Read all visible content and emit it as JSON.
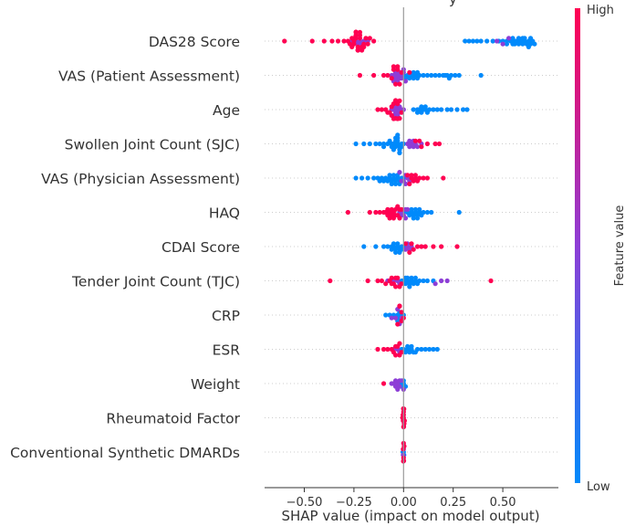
{
  "chart_data": {
    "type": "scatter",
    "subtype": "shap-beeswarm",
    "title_fragment": "y",
    "xlabel": "SHAP value (impact on model output)",
    "xlim": [
      -0.7,
      0.78
    ],
    "xticks": [
      {
        "value": -0.5,
        "label": "−0.50"
      },
      {
        "value": -0.25,
        "label": "−0.25"
      },
      {
        "value": 0,
        "label": "0.00"
      },
      {
        "value": 0.25,
        "label": "0.25"
      },
      {
        "value": 0.5,
        "label": "0.50"
      }
    ],
    "colorbar": {
      "title": "Feature value",
      "high_label": "High",
      "low_label": "Low",
      "low_color": "#008afb",
      "mid_color": "#8d3ed6",
      "high_color": "#ff0052"
    },
    "features": [
      {
        "name": "DAS28 Score",
        "blue": [
          0.31,
          0.33,
          0.35,
          0.37,
          0.39,
          0.42,
          0.45,
          0.48,
          0.5,
          0.52,
          0.54,
          0.55,
          0.56,
          0.57,
          0.58,
          0.59,
          0.6,
          0.61,
          0.62,
          0.63,
          0.64,
          0.65,
          0.66,
          0.52,
          0.55,
          0.58,
          0.61,
          0.64,
          0.56,
          0.6,
          0.63
        ],
        "purple": [
          -0.24,
          -0.22,
          -0.2,
          -0.18,
          -0.26,
          0.47,
          0.5,
          0.53,
          -0.23,
          -0.21
        ],
        "red": [
          -0.6,
          -0.46,
          -0.4,
          -0.36,
          -0.33,
          -0.3,
          -0.28,
          -0.27,
          -0.26,
          -0.25,
          -0.24,
          -0.23,
          -0.22,
          -0.21,
          -0.2,
          -0.19,
          -0.18,
          -0.17,
          -0.15,
          -0.26,
          -0.25,
          -0.24,
          -0.23,
          -0.22,
          -0.21,
          -0.2,
          -0.25,
          -0.24,
          -0.23,
          -0.22,
          -0.21,
          -0.24,
          -0.23
        ]
      },
      {
        "name": "VAS (Patient Assessment)",
        "blue": [
          0.0,
          0.02,
          0.04,
          0.05,
          0.06,
          0.07,
          0.08,
          0.1,
          0.12,
          0.14,
          0.16,
          0.18,
          0.2,
          0.22,
          0.24,
          0.26,
          0.28,
          0.39,
          0.01,
          0.03,
          0.05,
          0.07,
          0.21,
          0.23
        ],
        "purple": [
          -0.06,
          -0.05,
          -0.04,
          -0.03,
          -0.02,
          -0.01,
          0.0,
          0.01,
          -0.04,
          -0.02,
          0.0,
          -0.05,
          -0.03,
          -0.01
        ],
        "red": [
          -0.22,
          -0.15,
          -0.1,
          -0.08,
          -0.06,
          -0.05,
          -0.04,
          -0.03,
          -0.02,
          -0.01,
          -0.05,
          -0.03,
          0.03
        ]
      },
      {
        "name": "Age",
        "blue": [
          0.05,
          0.07,
          0.08,
          0.09,
          0.1,
          0.11,
          0.12,
          0.13,
          0.15,
          0.17,
          0.19,
          0.22,
          0.24,
          0.27,
          0.3,
          0.32,
          0.07,
          0.09,
          0.11
        ],
        "purple": [
          -0.06,
          -0.05,
          -0.04,
          -0.03,
          -0.02,
          -0.01,
          0.0,
          -0.04,
          -0.02,
          -0.03,
          -0.05
        ],
        "red": [
          -0.13,
          -0.11,
          -0.09,
          -0.08,
          -0.07,
          -0.06,
          -0.05,
          -0.04,
          -0.03,
          -0.02,
          -0.01,
          -0.06,
          -0.04,
          -0.02,
          -0.05,
          -0.03,
          -0.04
        ]
      },
      {
        "name": "Swollen Joint Count (SJC)",
        "blue": [
          -0.24,
          -0.2,
          -0.17,
          -0.14,
          -0.12,
          -0.1,
          -0.08,
          -0.06,
          -0.05,
          -0.04,
          -0.03,
          -0.02,
          -0.01,
          0.0,
          -0.06,
          -0.04,
          -0.03,
          -0.02,
          -0.01,
          -0.05,
          -0.03,
          -0.02,
          -0.04,
          -0.03,
          -0.02,
          -0.1,
          -0.07
        ],
        "purple": [
          0.02,
          0.03,
          0.04,
          0.05,
          0.06,
          0.07,
          0.09,
          0.03,
          0.05
        ],
        "red": [
          0.06,
          0.09,
          0.12,
          0.16,
          0.18,
          0.08
        ]
      },
      {
        "name": "VAS (Physician Assessment)",
        "blue": [
          -0.24,
          -0.21,
          -0.18,
          -0.15,
          -0.13,
          -0.11,
          -0.09,
          -0.08,
          -0.07,
          -0.06,
          -0.05,
          -0.04,
          -0.03,
          -0.02,
          -0.01,
          0.0,
          -0.07,
          -0.05,
          -0.03,
          -0.02,
          -0.06,
          -0.04,
          -0.1,
          -0.12
        ],
        "purple": [
          -0.02,
          0.0,
          0.01,
          0.02,
          0.03,
          -0.01,
          0.01
        ],
        "red": [
          0.02,
          0.03,
          0.04,
          0.05,
          0.06,
          0.07,
          0.08,
          0.1,
          0.12,
          0.2,
          0.04,
          0.06
        ]
      },
      {
        "name": "HAQ",
        "blue": [
          0.0,
          0.02,
          0.03,
          0.04,
          0.05,
          0.06,
          0.07,
          0.08,
          0.09,
          0.1,
          0.12,
          0.14,
          0.28,
          0.04,
          0.06,
          0.08,
          0.05,
          0.07
        ],
        "purple": [
          -0.02,
          -0.01,
          0.0,
          0.01,
          0.02,
          -0.01,
          0.01
        ],
        "red": [
          -0.28,
          -0.17,
          -0.14,
          -0.12,
          -0.1,
          -0.09,
          -0.08,
          -0.07,
          -0.06,
          -0.05,
          -0.04,
          -0.03,
          -0.02,
          -0.01,
          -0.08,
          -0.06,
          -0.04,
          -0.02,
          -0.05,
          -0.03,
          -0.07
        ]
      },
      {
        "name": "CDAI Score",
        "blue": [
          -0.2,
          -0.14,
          -0.1,
          -0.08,
          -0.06,
          -0.05,
          -0.04,
          -0.03,
          -0.02,
          -0.01,
          0.0,
          -0.05,
          -0.03,
          -0.01,
          -0.04,
          -0.02,
          -0.06
        ],
        "purple": [
          0.01,
          0.02,
          0.03,
          0.04,
          0.02
        ],
        "red": [
          0.01,
          0.03,
          0.05,
          0.07,
          0.09,
          0.11,
          0.15,
          0.19,
          0.27,
          0.04
        ]
      },
      {
        "name": "Tender Joint Count (TJC)",
        "blue": [
          -0.01,
          0.0,
          0.01,
          0.02,
          0.03,
          0.04,
          0.05,
          0.06,
          0.07,
          0.08,
          0.1,
          0.12,
          0.15,
          0.02,
          0.04,
          0.06,
          0.01,
          0.03
        ],
        "purple": [
          -0.08,
          -0.05,
          -0.03,
          0.16,
          0.19,
          0.22,
          -0.02
        ],
        "red": [
          -0.37,
          -0.18,
          -0.13,
          -0.11,
          -0.09,
          -0.07,
          -0.06,
          -0.05,
          -0.04,
          -0.03,
          -0.02,
          -0.01,
          0.44,
          -0.06,
          -0.04
        ]
      },
      {
        "name": "CRP",
        "blue": [
          -0.09,
          -0.07,
          -0.05,
          -0.03,
          -0.02,
          -0.01,
          0.0,
          -0.02,
          -0.03
        ],
        "purple": [
          -0.06,
          -0.04,
          -0.03,
          -0.02,
          -0.01
        ],
        "red": [
          -0.02,
          -0.01,
          0.0,
          -0.03,
          -0.01,
          -0.02
        ]
      },
      {
        "name": "ESR",
        "blue": [
          -0.01,
          0.0,
          0.01,
          0.02,
          0.03,
          0.04,
          0.05,
          0.07,
          0.09,
          0.11,
          0.13,
          0.15,
          0.17,
          0.02,
          0.04,
          0.06
        ],
        "purple": [
          -0.05,
          -0.03,
          -0.02
        ],
        "red": [
          -0.13,
          -0.1,
          -0.08,
          -0.06,
          -0.05,
          -0.04,
          -0.03,
          -0.02,
          -0.01,
          -0.04,
          -0.02
        ]
      },
      {
        "name": "Weight",
        "blue": [
          -0.01,
          0.0,
          0.01,
          0.0,
          -0.01
        ],
        "purple": [
          -0.06,
          -0.05,
          -0.04,
          -0.03,
          -0.02,
          -0.01,
          0.0,
          -0.04,
          -0.02,
          -0.03
        ],
        "red": [
          -0.1
        ]
      },
      {
        "name": "Rheumatoid Factor",
        "blue": [],
        "purple": [],
        "red": [
          -0.005,
          0.0,
          0.005,
          0.0,
          -0.002,
          0.003,
          0.0,
          0.001,
          -0.003,
          0.002,
          0.0,
          -0.001
        ]
      },
      {
        "name": "Conventional Synthetic DMARDs",
        "blue": [
          -0.003,
          0.0,
          0.002
        ],
        "purple": [
          0.0,
          -0.002
        ],
        "red": [
          0.0,
          0.003,
          -0.002,
          0.001,
          0.0,
          -0.001
        ]
      }
    ]
  }
}
